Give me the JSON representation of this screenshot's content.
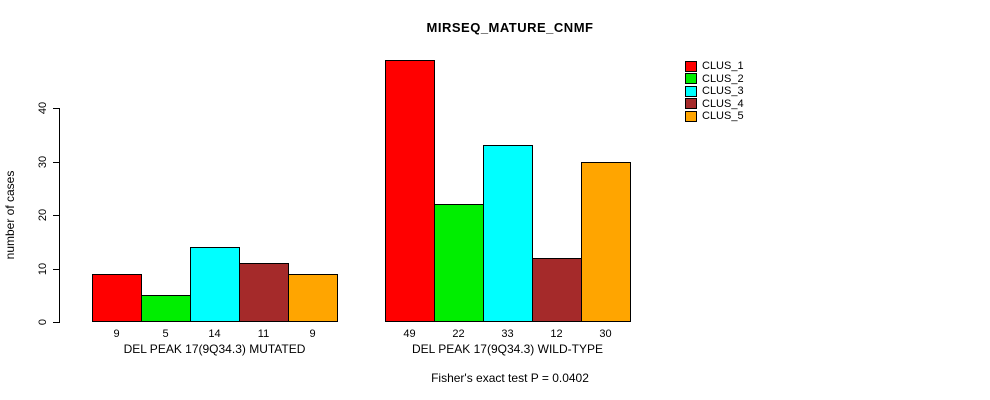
{
  "chart_data": {
    "type": "bar",
    "title": "MIRSEQ_MATURE_CNMF",
    "xlabel": "",
    "ylabel": "number of cases",
    "ylim": [
      0,
      40
    ],
    "yticks": [
      0,
      10,
      20,
      30,
      40
    ],
    "grid": false,
    "legend_position": "top-right",
    "series": [
      {
        "name": "CLUS_1",
        "color": "#FF0000"
      },
      {
        "name": "CLUS_2",
        "color": "#00EE00"
      },
      {
        "name": "CLUS_3",
        "color": "#00FFFF"
      },
      {
        "name": "CLUS_4",
        "color": "#A52A2A"
      },
      {
        "name": "CLUS_5",
        "color": "#FFA500"
      }
    ],
    "groups": [
      {
        "label": "DEL PEAK 17(9Q34.3) MUTATED",
        "values": [
          9,
          5,
          14,
          11,
          9
        ]
      },
      {
        "label": "DEL PEAK 17(9Q34.3) WILD-TYPE",
        "values": [
          49,
          22,
          33,
          12,
          30
        ]
      }
    ],
    "annotation": "Fisher's exact test P = 0.0402"
  }
}
